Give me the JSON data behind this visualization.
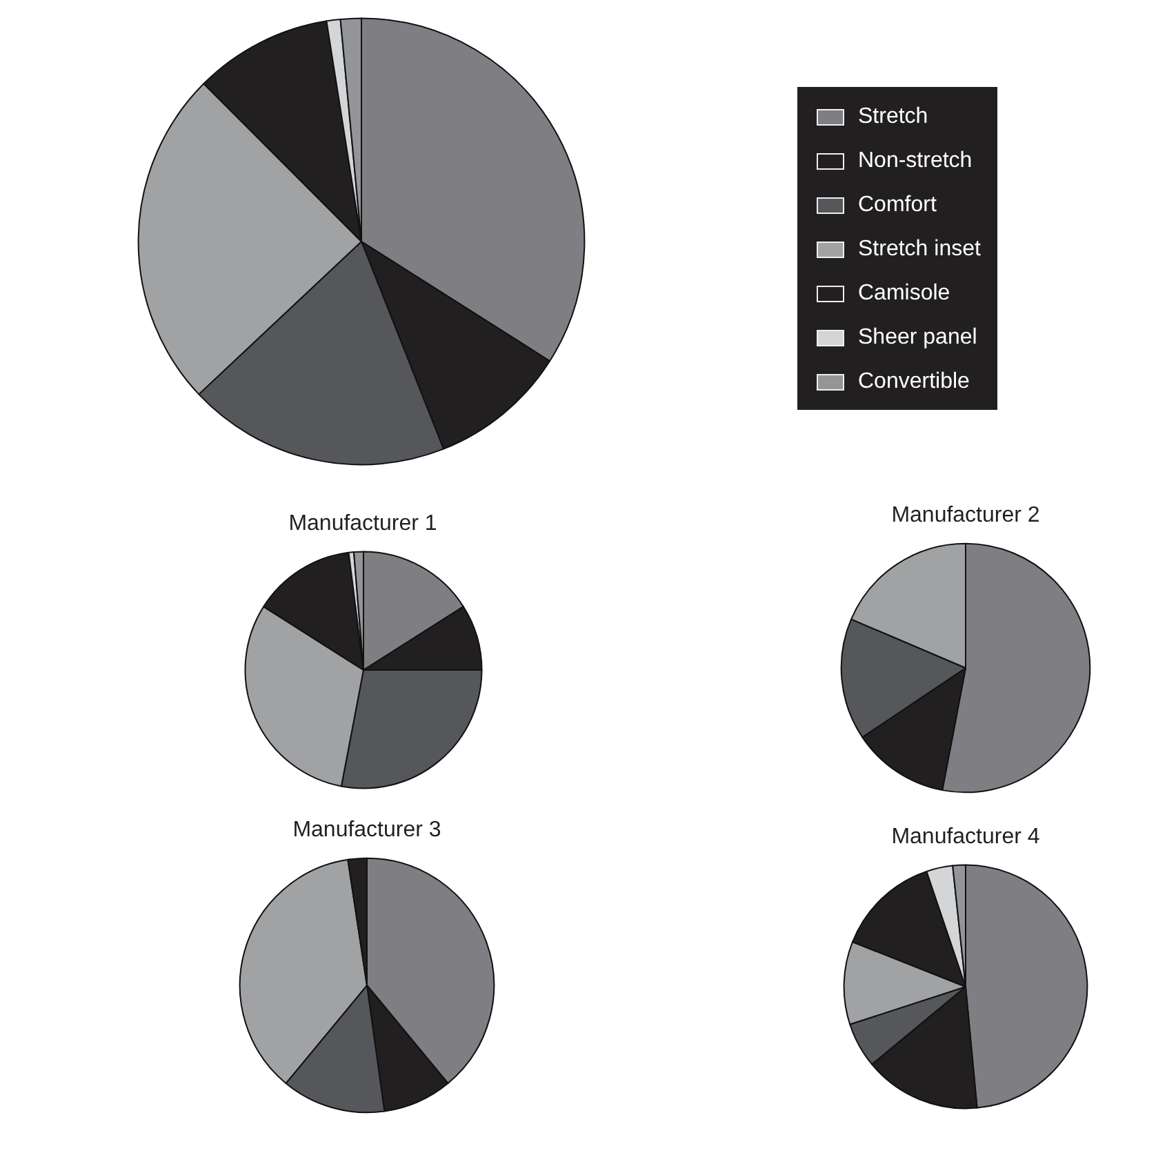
{
  "chart_data": [
    {
      "type": "pie",
      "legend": "right",
      "categories": [
        "Stretch",
        "Non-stretch",
        "Comfort",
        "Stretch inset",
        "Camisole",
        "Sheer panel",
        "Convertible"
      ],
      "values": [
        34,
        10,
        19,
        24.5,
        10,
        1,
        1.5
      ],
      "colors": [
        "#7f7f83",
        "#221f20",
        "#56575a",
        "#a1a2a4",
        "#221f20",
        "#d4d5d7",
        "#949598"
      ]
    },
    {
      "type": "pie",
      "title": "Manufacturer 1",
      "categories": [
        null,
        null,
        null,
        null,
        null,
        null,
        null
      ],
      "values": [
        16,
        9,
        28,
        31,
        14,
        0.7,
        1.3
      ],
      "colors": [
        "#7f7f83",
        "#221f20",
        "#56575a",
        "#a1a2a4",
        "#221f20",
        "#d4d5d7",
        "#949598"
      ]
    },
    {
      "type": "pie",
      "title": "Manufacturer 2",
      "categories": [
        null,
        null,
        null,
        null
      ],
      "values": [
        53,
        12.6,
        15.8,
        18.6
      ],
      "colors": [
        "#7f7f83",
        "#221f20",
        "#56575a",
        "#a1a2a4"
      ]
    },
    {
      "type": "pie",
      "title": "Manufacturer 3",
      "categories": [
        null,
        null,
        null,
        null,
        null
      ],
      "values": [
        39,
        8.8,
        13.2,
        36.6,
        2.4
      ],
      "colors": [
        "#7f7f83",
        "#221f20",
        "#56575a",
        "#a1a2a4",
        "#221f20"
      ]
    },
    {
      "type": "pie",
      "title": "Manufacturer 4",
      "categories": [
        null,
        null,
        null,
        null,
        null,
        null,
        null
      ],
      "values": [
        48.5,
        15.5,
        6,
        11,
        13.8,
        3.5,
        1.7
      ],
      "colors": [
        "#7f7f83",
        "#221f20",
        "#56575a",
        "#a1a2a4",
        "#221f20",
        "#d4d5d7",
        "#949598"
      ]
    }
  ]
}
